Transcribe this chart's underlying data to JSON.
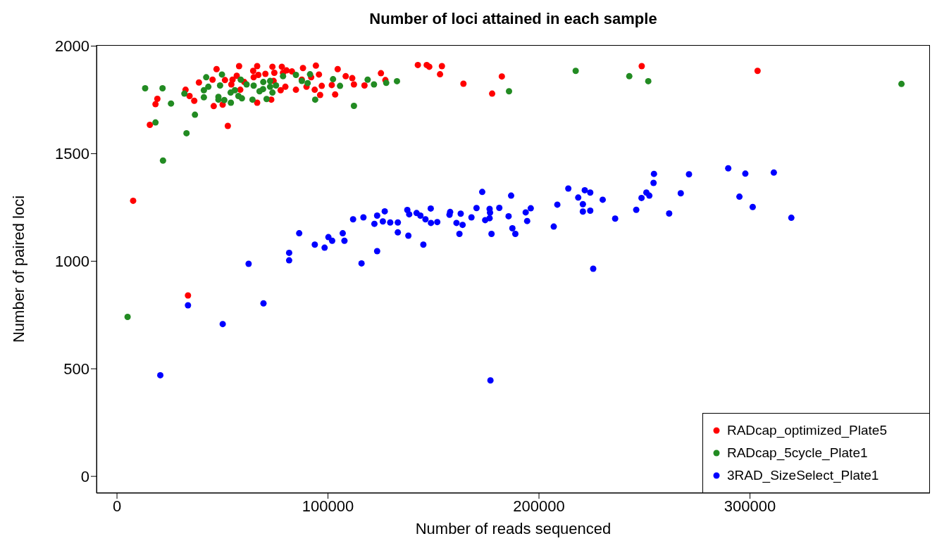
{
  "chart_data": {
    "type": "scatter",
    "title": "Number of loci attained in each sample",
    "xlabel": "Number of reads sequenced",
    "ylabel": "Number of paired loci",
    "xlim": [
      -9700,
      385300
    ],
    "ylim": [
      -78,
      2005
    ],
    "xticks": [
      0,
      100000,
      200000,
      300000
    ],
    "yticks": [
      0,
      500,
      1000,
      1500,
      2000
    ],
    "grid": false,
    "legend": "bottom right",
    "marker": "circle",
    "series": [
      {
        "name": "RADcap_optimized_Plate5",
        "color": "#ff0000",
        "x": [
          15580,
          18250,
          19140,
          32500,
          34390,
          36620,
          38840,
          45850,
          50080,
          52530,
          45300,
          47190,
          51190,
          54760,
          56760,
          57870,
          54200,
          58430,
          60320,
          64550,
          66440,
          66990,
          64780,
          66440,
          70340,
          73680,
          73120,
          74570,
          78130,
          80360,
          78690,
          82920,
          74240,
          77570,
          79800,
          84810,
          88150,
          87590,
          89820,
          92040,
          94270,
          95720,
          97050,
          93710,
          96270,
          101800,
          103400,
          104600,
          108400,
          111500,
          112300,
          117300,
          125100,
          127200,
          142600,
          146800,
          148000,
          154000,
          153100,
          164200,
          177800,
          182400,
          248700,
          303600,
          7660,
          33650
        ],
        "values": [
          1634,
          1730,
          1755,
          1797,
          1768,
          1746,
          1831,
          1721,
          1728,
          1629,
          1844,
          1893,
          1842,
          1844,
          1862,
          1907,
          1822,
          1797,
          1833,
          1885,
          1907,
          1866,
          1855,
          1737,
          1871,
          1904,
          1751,
          1876,
          1904,
          1887,
          1876,
          1882,
          1838,
          1795,
          1811,
          1797,
          1898,
          1844,
          1811,
          1855,
          1909,
          1868,
          1815,
          1797,
          1773,
          1819,
          1775,
          1893,
          1860,
          1851,
          1822,
          1817,
          1874,
          1842,
          1912,
          1912,
          1904,
          1907,
          1869,
          1825,
          1779,
          1859,
          1907,
          1885,
          1281,
          841
        ]
      },
      {
        "name": "RADcap_5cycle_Plate1",
        "color": "#228b22",
        "x": [
          13350,
          21590,
          25600,
          18250,
          32950,
          36950,
          21810,
          31940,
          41180,
          41180,
          42290,
          43290,
          48080,
          48860,
          49750,
          48080,
          50860,
          53980,
          53870,
          55870,
          57540,
          59210,
          58650,
          61430,
          64220,
          64780,
          67560,
          69230,
          70900,
          72570,
          73680,
          75350,
          69340,
          72570,
          78690,
          84810,
          87590,
          91490,
          90370,
          93930,
          102400,
          105700,
          112300,
          118800,
          121800,
          127600,
          132700,
          185800,
          217400,
          242800,
          251800,
          371800,
          5030
        ],
        "values": [
          1804,
          1804,
          1733,
          1645,
          1595,
          1681,
          1468,
          1779,
          1762,
          1795,
          1855,
          1811,
          1764,
          1817,
          1868,
          1751,
          1749,
          1737,
          1784,
          1795,
          1768,
          1757,
          1844,
          1822,
          1751,
          1816,
          1790,
          1800,
          1754,
          1811,
          1784,
          1817,
          1833,
          1838,
          1860,
          1866,
          1838,
          1869,
          1828,
          1751,
          1846,
          1815,
          1722,
          1844,
          1822,
          1829,
          1837,
          1790,
          1885,
          1860,
          1837,
          1824,
          741
        ]
      },
      {
        "name": "3RAD_SizeSelect_Plate1",
        "color": "#0000ff",
        "x": [
          33650,
          20530,
          50110,
          62390,
          69430,
          81590,
          81590,
          86360,
          93750,
          98400,
          100200,
          101980,
          106990,
          107800,
          111900,
          115900,
          116800,
          123300,
          122000,
          126000,
          126900,
          123300,
          129500,
          133100,
          133100,
          137600,
          138500,
          142000,
          143800,
          146200,
          148700,
          148800,
          151800,
          138100,
          145200,
          157900,
          157600,
          162900,
          160900,
          163800,
          162300,
          168000,
          170400,
          173100,
          176600,
          176800,
          176600,
          174500,
          177500,
          181200,
          185600,
          186800,
          187400,
          188800,
          193700,
          196100,
          194400,
          207000,
          208700,
          213900,
          218600,
          221700,
          224300,
          220800,
          220800,
          224300,
          230200,
          225700,
          236100,
          246100,
          248600,
          250900,
          252300,
          254300,
          254500,
          261700,
          267200,
          271100,
          289700,
          295000,
          297800,
          301300,
          311300,
          319600,
          177000
        ],
        "values": [
          795,
          470,
          708,
          988,
          804,
          1039,
          1004,
          1130,
          1077,
          1063,
          1112,
          1095,
          1130,
          1095,
          1195,
          990,
          1204,
          1212,
          1174,
          1185,
          1232,
          1047,
          1180,
          1180,
          1134,
          1238,
          1218,
          1224,
          1212,
          1195,
          1245,
          1178,
          1182,
          1119,
          1077,
          1229,
          1216,
          1221,
          1178,
          1169,
          1127,
          1204,
          1247,
          1322,
          1243,
          1226,
          1200,
          1191,
          1127,
          1248,
          1209,
          1305,
          1153,
          1127,
          1227,
          1246,
          1187,
          1161,
          1263,
          1338,
          1296,
          1330,
          1319,
          1265,
          1231,
          1235,
          1286,
          965,
          1198,
          1239,
          1294,
          1319,
          1305,
          1364,
          1406,
          1222,
          1316,
          1404,
          1432,
          1300,
          1407,
          1252,
          1412,
          1202,
          446
        ]
      }
    ]
  }
}
